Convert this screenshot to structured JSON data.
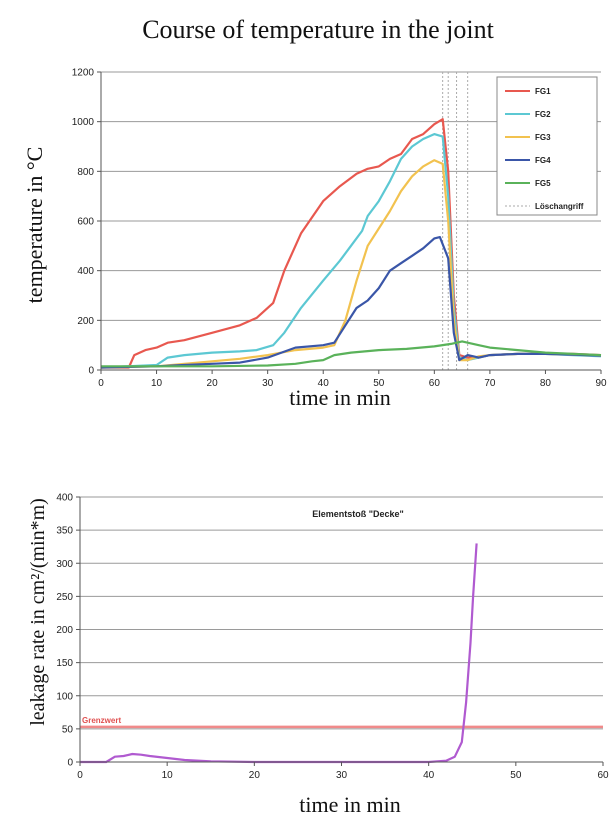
{
  "chart_data": [
    {
      "type": "line",
      "title": "Course of temperature in the joint",
      "xlabel": "time in min",
      "ylabel": "temperature in °C",
      "xlim": [
        0,
        90
      ],
      "ylim": [
        0,
        1200
      ],
      "xticks": [
        0,
        10,
        20,
        30,
        40,
        50,
        60,
        70,
        80,
        90
      ],
      "yticks": [
        0,
        200,
        400,
        600,
        800,
        1000,
        1200
      ],
      "grid": "horizontal",
      "legend": "top-right",
      "marker_line": {
        "name": "Löschangriff",
        "x": [
          61.5,
          62.5,
          64,
          66
        ],
        "color": "#aaaaaa"
      },
      "series": [
        {
          "name": "FG1",
          "color": "#e8584f",
          "points": [
            [
              0,
              10
            ],
            [
              5,
              10
            ],
            [
              6,
              60
            ],
            [
              8,
              80
            ],
            [
              10,
              90
            ],
            [
              12,
              110
            ],
            [
              15,
              120
            ],
            [
              20,
              150
            ],
            [
              25,
              180
            ],
            [
              28,
              210
            ],
            [
              31,
              270
            ],
            [
              33,
              400
            ],
            [
              36,
              550
            ],
            [
              40,
              680
            ],
            [
              43,
              740
            ],
            [
              46,
              790
            ],
            [
              48,
              810
            ],
            [
              50,
              820
            ],
            [
              52,
              850
            ],
            [
              54,
              870
            ],
            [
              56,
              930
            ],
            [
              58,
              950
            ],
            [
              60,
              990
            ],
            [
              61.5,
              1010
            ],
            [
              62.5,
              800
            ],
            [
              63.5,
              300
            ],
            [
              64.5,
              60
            ],
            [
              66,
              50
            ],
            [
              68,
              50
            ],
            [
              70,
              60
            ],
            [
              75,
              65
            ],
            [
              80,
              65
            ],
            [
              85,
              65
            ],
            [
              90,
              60
            ]
          ]
        },
        {
          "name": "FG2",
          "color": "#5cc8d3",
          "points": [
            [
              0,
              10
            ],
            [
              10,
              20
            ],
            [
              12,
              50
            ],
            [
              15,
              60
            ],
            [
              20,
              70
            ],
            [
              25,
              75
            ],
            [
              28,
              80
            ],
            [
              31,
              100
            ],
            [
              33,
              150
            ],
            [
              36,
              250
            ],
            [
              40,
              360
            ],
            [
              43,
              440
            ],
            [
              45,
              500
            ],
            [
              47,
              560
            ],
            [
              48,
              620
            ],
            [
              50,
              680
            ],
            [
              52,
              760
            ],
            [
              54,
              850
            ],
            [
              56,
              900
            ],
            [
              58,
              930
            ],
            [
              60,
              950
            ],
            [
              61.5,
              940
            ],
            [
              62.5,
              700
            ],
            [
              63.5,
              250
            ],
            [
              64.5,
              50
            ],
            [
              66,
              40
            ],
            [
              68,
              50
            ],
            [
              70,
              60
            ],
            [
              75,
              65
            ],
            [
              80,
              65
            ],
            [
              85,
              60
            ],
            [
              90,
              55
            ]
          ]
        },
        {
          "name": "FG3",
          "color": "#f2c24f",
          "points": [
            [
              0,
              10
            ],
            [
              10,
              15
            ],
            [
              15,
              25
            ],
            [
              20,
              35
            ],
            [
              25,
              45
            ],
            [
              30,
              60
            ],
            [
              35,
              80
            ],
            [
              40,
              90
            ],
            [
              42,
              100
            ],
            [
              44,
              200
            ],
            [
              46,
              360
            ],
            [
              48,
              500
            ],
            [
              50,
              570
            ],
            [
              52,
              640
            ],
            [
              54,
              720
            ],
            [
              56,
              780
            ],
            [
              58,
              820
            ],
            [
              60,
              845
            ],
            [
              61.5,
              830
            ],
            [
              62.5,
              600
            ],
            [
              63.5,
              200
            ],
            [
              64.5,
              40
            ],
            [
              66,
              40
            ],
            [
              68,
              55
            ],
            [
              70,
              60
            ],
            [
              75,
              65
            ],
            [
              80,
              65
            ],
            [
              85,
              62
            ],
            [
              90,
              58
            ]
          ]
        },
        {
          "name": "FG4",
          "color": "#3a56a8",
          "points": [
            [
              0,
              10
            ],
            [
              10,
              15
            ],
            [
              15,
              20
            ],
            [
              20,
              25
            ],
            [
              25,
              30
            ],
            [
              30,
              50
            ],
            [
              35,
              90
            ],
            [
              40,
              100
            ],
            [
              42,
              110
            ],
            [
              44,
              180
            ],
            [
              46,
              250
            ],
            [
              48,
              280
            ],
            [
              50,
              330
            ],
            [
              52,
              400
            ],
            [
              54,
              430
            ],
            [
              56,
              460
            ],
            [
              58,
              490
            ],
            [
              60,
              530
            ],
            [
              61,
              535
            ],
            [
              62.5,
              450
            ],
            [
              63.5,
              150
            ],
            [
              64.5,
              40
            ],
            [
              66,
              60
            ],
            [
              68,
              50
            ],
            [
              70,
              60
            ],
            [
              75,
              65
            ],
            [
              80,
              65
            ],
            [
              85,
              62
            ],
            [
              90,
              58
            ]
          ]
        },
        {
          "name": "FG5",
          "color": "#5ab25a",
          "points": [
            [
              0,
              15
            ],
            [
              10,
              15
            ],
            [
              20,
              15
            ],
            [
              30,
              18
            ],
            [
              35,
              25
            ],
            [
              38,
              35
            ],
            [
              40,
              40
            ],
            [
              42,
              60
            ],
            [
              45,
              70
            ],
            [
              50,
              80
            ],
            [
              55,
              85
            ],
            [
              60,
              95
            ],
            [
              63,
              105
            ],
            [
              65,
              115
            ],
            [
              68,
              100
            ],
            [
              70,
              90
            ],
            [
              75,
              80
            ],
            [
              80,
              70
            ],
            [
              85,
              65
            ],
            [
              90,
              60
            ]
          ]
        }
      ]
    },
    {
      "type": "line",
      "title": "Elementstoß \"Decke\"",
      "xlabel": "time in min",
      "ylabel": "leakage rate in cm²/(min*m)",
      "xlim": [
        0,
        60
      ],
      "ylim": [
        0,
        400
      ],
      "xticks": [
        0,
        10,
        20,
        30,
        40,
        50,
        60
      ],
      "yticks": [
        0,
        50,
        100,
        150,
        200,
        250,
        300,
        350,
        400
      ],
      "grid": "horizontal",
      "threshold": {
        "name": "Grenzwert",
        "y": 53,
        "color": "#f08a8a"
      },
      "series": [
        {
          "name": "",
          "color": "#b05ad0",
          "points": [
            [
              0,
              0
            ],
            [
              3,
              0
            ],
            [
              4,
              8
            ],
            [
              5,
              9
            ],
            [
              6,
              12
            ],
            [
              7,
              11
            ],
            [
              8,
              9
            ],
            [
              10,
              6
            ],
            [
              12,
              3
            ],
            [
              15,
              1
            ],
            [
              20,
              0
            ],
            [
              30,
              0
            ],
            [
              40,
              0
            ],
            [
              42,
              2
            ],
            [
              43,
              8
            ],
            [
              43.8,
              30
            ],
            [
              44.3,
              90
            ],
            [
              44.8,
              180
            ],
            [
              45.1,
              250
            ],
            [
              45.5,
              330
            ]
          ]
        }
      ]
    }
  ]
}
